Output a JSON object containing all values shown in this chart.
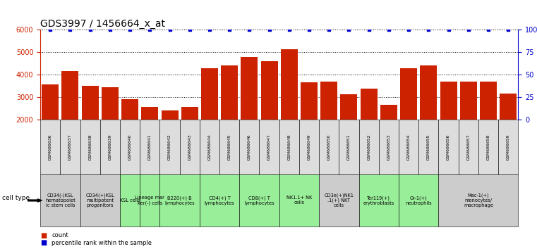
{
  "title": "GDS3997 / 1456664_x_at",
  "samples": [
    "GSM686636",
    "GSM686637",
    "GSM686638",
    "GSM686639",
    "GSM686640",
    "GSM686641",
    "GSM686642",
    "GSM686643",
    "GSM686644",
    "GSM686645",
    "GSM686646",
    "GSM686647",
    "GSM686648",
    "GSM686649",
    "GSM686650",
    "GSM686651",
    "GSM686652",
    "GSM686653",
    "GSM686654",
    "GSM686655",
    "GSM686656",
    "GSM686657",
    "GSM686658",
    "GSM686659"
  ],
  "counts": [
    3580,
    4150,
    3500,
    3450,
    2900,
    2550,
    2420,
    2560,
    4300,
    4430,
    4800,
    4600,
    5150,
    3650,
    3700,
    3130,
    3370,
    2650,
    4280,
    4400,
    3680,
    3700,
    3700,
    3160
  ],
  "percentile_ranks": [
    100,
    100,
    100,
    100,
    100,
    100,
    100,
    100,
    100,
    100,
    100,
    100,
    100,
    100,
    100,
    100,
    100,
    100,
    100,
    100,
    100,
    100,
    100,
    100
  ],
  "cell_type_groups": [
    {
      "span": [
        0,
        2
      ],
      "label": "CD34(-)KSL\nhematopoiet\nic stem cells",
      "color": "#cccccc"
    },
    {
      "span": [
        2,
        4
      ],
      "label": "CD34(+)KSL\nmultipotent\nprogenitors",
      "color": "#cccccc"
    },
    {
      "span": [
        4,
        6
      ],
      "label": "KSL cells",
      "color": "#99ee99"
    },
    {
      "span": [
        6,
        8
      ],
      "label": "Lineage mar\nker(-) cells",
      "color": "#99ee99"
    },
    {
      "span": [
        8,
        12
      ],
      "label": "B220(+) B\nlymphocytes",
      "color": "#99ee99"
    },
    {
      "span": [
        12,
        16
      ],
      "label": "CD4(+) T\nlymphocytes",
      "color": "#99ee99"
    },
    {
      "span": [
        16,
        20
      ],
      "label": "CD8(+) T\nlymphocytes",
      "color": "#99ee99"
    },
    {
      "span": [
        20,
        24
      ],
      "label": "NK1.1+ NK\ncells",
      "color": "#99ee99"
    },
    {
      "span": [
        24,
        28
      ],
      "label": "CD3e(+)NK1\n.1(+) NKT\ncells",
      "color": "#cccccc"
    },
    {
      "span": [
        28,
        32
      ],
      "label": "Ter119(+)\nerythroblasts",
      "color": "#99ee99"
    },
    {
      "span": [
        32,
        36
      ],
      "label": "Gr-1(+)\nneutrophils",
      "color": "#99ee99"
    },
    {
      "span": [
        36,
        40
      ],
      "label": "Mac-1(+)\nmonocytes/\nmacrophage",
      "color": "#cccccc"
    }
  ],
  "bar_color": "#cc2200",
  "percentile_color": "#0000cc",
  "ylim_left": [
    2000,
    6000
  ],
  "ylim_right": [
    0,
    100
  ],
  "yticks_left": [
    2000,
    3000,
    4000,
    5000,
    6000
  ],
  "yticks_right": [
    0,
    25,
    50,
    75,
    100
  ],
  "yticklabels_right": [
    "0",
    "25",
    "50",
    "75",
    "100%"
  ],
  "title_fontsize": 10,
  "tick_fontsize": 7,
  "label_fontsize": 5.5
}
